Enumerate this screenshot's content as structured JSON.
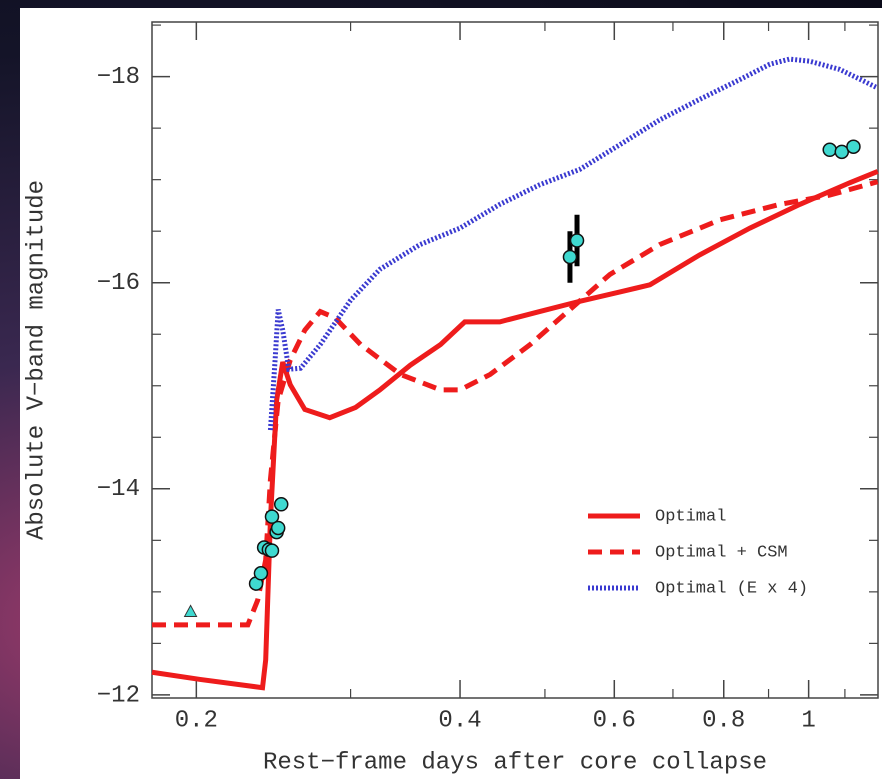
{
  "chart_data": {
    "type": "line",
    "xlabel": "Rest−frame days after core collapse",
    "ylabel": "Absolute V−band magnitude",
    "xscale": "log",
    "xlim": [
      0.178,
      1.2
    ],
    "ylim": [
      -11.97,
      -18.53
    ],
    "xticks": [
      0.2,
      0.4,
      0.6,
      0.8,
      1
    ],
    "xminor": [
      0.3,
      0.5,
      0.7,
      0.9,
      1.1
    ],
    "yticks": [
      {
        "value": -12,
        "label": "−12"
      },
      {
        "value": -14,
        "label": "−14"
      },
      {
        "value": -16,
        "label": "−16"
      },
      {
        "value": -18,
        "label": "−18"
      }
    ],
    "yminor": [
      -12.5,
      -13,
      -13.5,
      -14.5,
      -15,
      -15.5,
      -16.5,
      -17,
      -17.5,
      -18.5
    ],
    "legend": "lower right",
    "series": [
      {
        "name": "Optimal",
        "color": "#ee1c1c",
        "style": "solid",
        "x": [
          0.178,
          0.202,
          0.238,
          0.24,
          0.243,
          0.247,
          0.251,
          0.256,
          0.266,
          0.284,
          0.304,
          0.324,
          0.351,
          0.38,
          0.405,
          0.444,
          0.493,
          0.548,
          0.609,
          0.659,
          0.751,
          0.857,
          0.977,
          1.114,
          1.199
        ],
        "values": [
          -12.22,
          -12.15,
          -12.07,
          -12.34,
          -13.7,
          -14.86,
          -15.23,
          -15.01,
          -14.77,
          -14.69,
          -14.79,
          -14.96,
          -15.2,
          -15.4,
          -15.62,
          -15.62,
          -15.72,
          -15.82,
          -15.91,
          -15.98,
          -16.27,
          -16.53,
          -16.76,
          -16.97,
          -17.08
        ]
      },
      {
        "name": "Optimal + CSM",
        "color": "#ee1c1c",
        "style": "dashed",
        "x": [
          0.178,
          0.229,
          0.235,
          0.24,
          0.243,
          0.248,
          0.256,
          0.266,
          0.277,
          0.288,
          0.308,
          0.342,
          0.38,
          0.4,
          0.433,
          0.481,
          0.534,
          0.593,
          0.676,
          0.792,
          0.927,
          1.057,
          1.199
        ],
        "values": [
          -12.68,
          -12.68,
          -12.92,
          -13.31,
          -14.09,
          -14.86,
          -15.25,
          -15.54,
          -15.72,
          -15.66,
          -15.4,
          -15.11,
          -14.96,
          -14.96,
          -15.11,
          -15.4,
          -15.74,
          -16.08,
          -16.37,
          -16.61,
          -16.76,
          -16.85,
          -16.98
        ]
      },
      {
        "name": "Optimal (E x 4)",
        "color": "#3a3ad0",
        "style": "dotted",
        "x": [
          0.243,
          0.246,
          0.248,
          0.251,
          0.255,
          0.263,
          0.277,
          0.3,
          0.324,
          0.36,
          0.4,
          0.444,
          0.493,
          0.548,
          0.609,
          0.676,
          0.751,
          0.834,
          0.903,
          0.951,
          1.002,
          1.085,
          1.199
        ],
        "values": [
          -14.57,
          -15.25,
          -15.74,
          -15.54,
          -15.16,
          -15.17,
          -15.4,
          -15.83,
          -16.13,
          -16.37,
          -16.53,
          -16.76,
          -16.95,
          -17.1,
          -17.34,
          -17.58,
          -17.78,
          -17.97,
          -18.12,
          -18.17,
          -18.15,
          -18.07,
          -17.89
        ]
      }
    ],
    "observations": {
      "color": "#3fd9d0",
      "x": [
        0.234,
        0.237,
        0.239,
        0.242,
        0.244,
        0.244,
        0.247,
        0.248,
        0.25,
        0.534,
        0.544,
        1.057,
        1.091,
        1.125
      ],
      "values": [
        -13.08,
        -13.18,
        -13.43,
        -13.41,
        -13.4,
        -13.73,
        -13.58,
        -13.62,
        -13.85,
        -16.25,
        -16.41,
        -17.29,
        -17.27,
        -17.32
      ],
      "errors": [
        null,
        null,
        null,
        null,
        null,
        null,
        null,
        null,
        null,
        0.25,
        0.25,
        null,
        null,
        null
      ]
    },
    "upper_limits": {
      "color": "#3fd9d0",
      "x": [
        0.197
      ],
      "values": [
        -12.81
      ]
    }
  }
}
